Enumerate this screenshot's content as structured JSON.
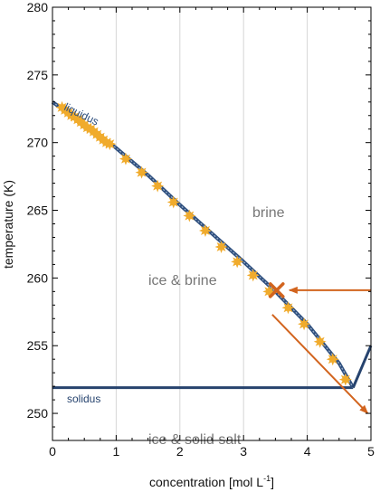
{
  "chart_data": {
    "type": "scatter",
    "xlabel": "concentration [mol L",
    "xlabel_superscript": "-1",
    "xlabel_suffix": "]",
    "ylabel": "temperature (K)",
    "xlim": [
      0,
      5
    ],
    "ylim": [
      248,
      280
    ],
    "x_ticks": [
      0,
      1,
      2,
      3,
      4,
      5
    ],
    "y_ticks": [
      250,
      255,
      260,
      265,
      270,
      275,
      280
    ],
    "x_tick_labels": [
      "0",
      "1",
      "2",
      "3",
      "4",
      "5"
    ],
    "y_tick_labels": [
      "250",
      "255",
      "260",
      "265",
      "270",
      "275",
      "280"
    ],
    "vertical_grid": true,
    "colors": {
      "liquidus_line": "#2d4e7e",
      "measured_points": "#f0ab2c",
      "solidus_line": "#26436e",
      "arrows": "#d2641e",
      "region_labels": "#777777"
    },
    "series": [
      {
        "kind": "line",
        "role": "liquidus",
        "x": [
          0,
          0.5,
          1.0,
          1.5,
          2.0,
          2.5,
          3.0,
          3.5,
          4.0,
          4.5,
          4.72
        ],
        "y": [
          273.0,
          271.3,
          269.6,
          267.6,
          265.4,
          263.3,
          261.2,
          259.0,
          256.6,
          253.7,
          251.9
        ]
      },
      {
        "kind": "line",
        "role": "salt liquidus",
        "x": [
          4.72,
          5.0
        ],
        "y": [
          251.9,
          255.0
        ]
      },
      {
        "kind": "points",
        "role": "measurements",
        "x": [
          0.15,
          0.2,
          0.25,
          0.3,
          0.35,
          0.4,
          0.45,
          0.5,
          0.55,
          0.6,
          0.65,
          0.7,
          0.75,
          0.8,
          0.85,
          0.9,
          1.15,
          1.4,
          1.65,
          1.9,
          2.15,
          2.4,
          2.65,
          2.9,
          3.15,
          3.4,
          3.7,
          3.95,
          4.2,
          4.4,
          4.6
        ],
        "y": [
          272.6,
          272.4,
          272.2,
          272.0,
          271.9,
          271.7,
          271.5,
          271.3,
          271.1,
          271.0,
          270.8,
          270.6,
          270.4,
          270.2,
          270.0,
          269.9,
          268.8,
          267.8,
          266.8,
          265.6,
          264.6,
          263.5,
          262.3,
          261.2,
          260.2,
          259.0,
          257.8,
          256.6,
          255.3,
          254.0,
          252.5
        ]
      }
    ],
    "solidus": {
      "y": 251.9,
      "x_start": 0,
      "x_end": 4.72
    },
    "annotations": {
      "liquidus_label": "liquidus",
      "solidus_label": "solidus",
      "brine": "brine",
      "ice_brine": "ice & brine",
      "ice_solid_salt": "ice & solid salt"
    },
    "markers": {
      "cross": {
        "x": 3.52,
        "y": 259.1
      },
      "arrow_in": {
        "from": [
          5.0,
          259.1
        ],
        "to": [
          3.72,
          259.1
        ]
      },
      "arrow_out": {
        "from": [
          3.45,
          257.3
        ],
        "to": [
          4.95,
          250.0
        ]
      }
    }
  }
}
